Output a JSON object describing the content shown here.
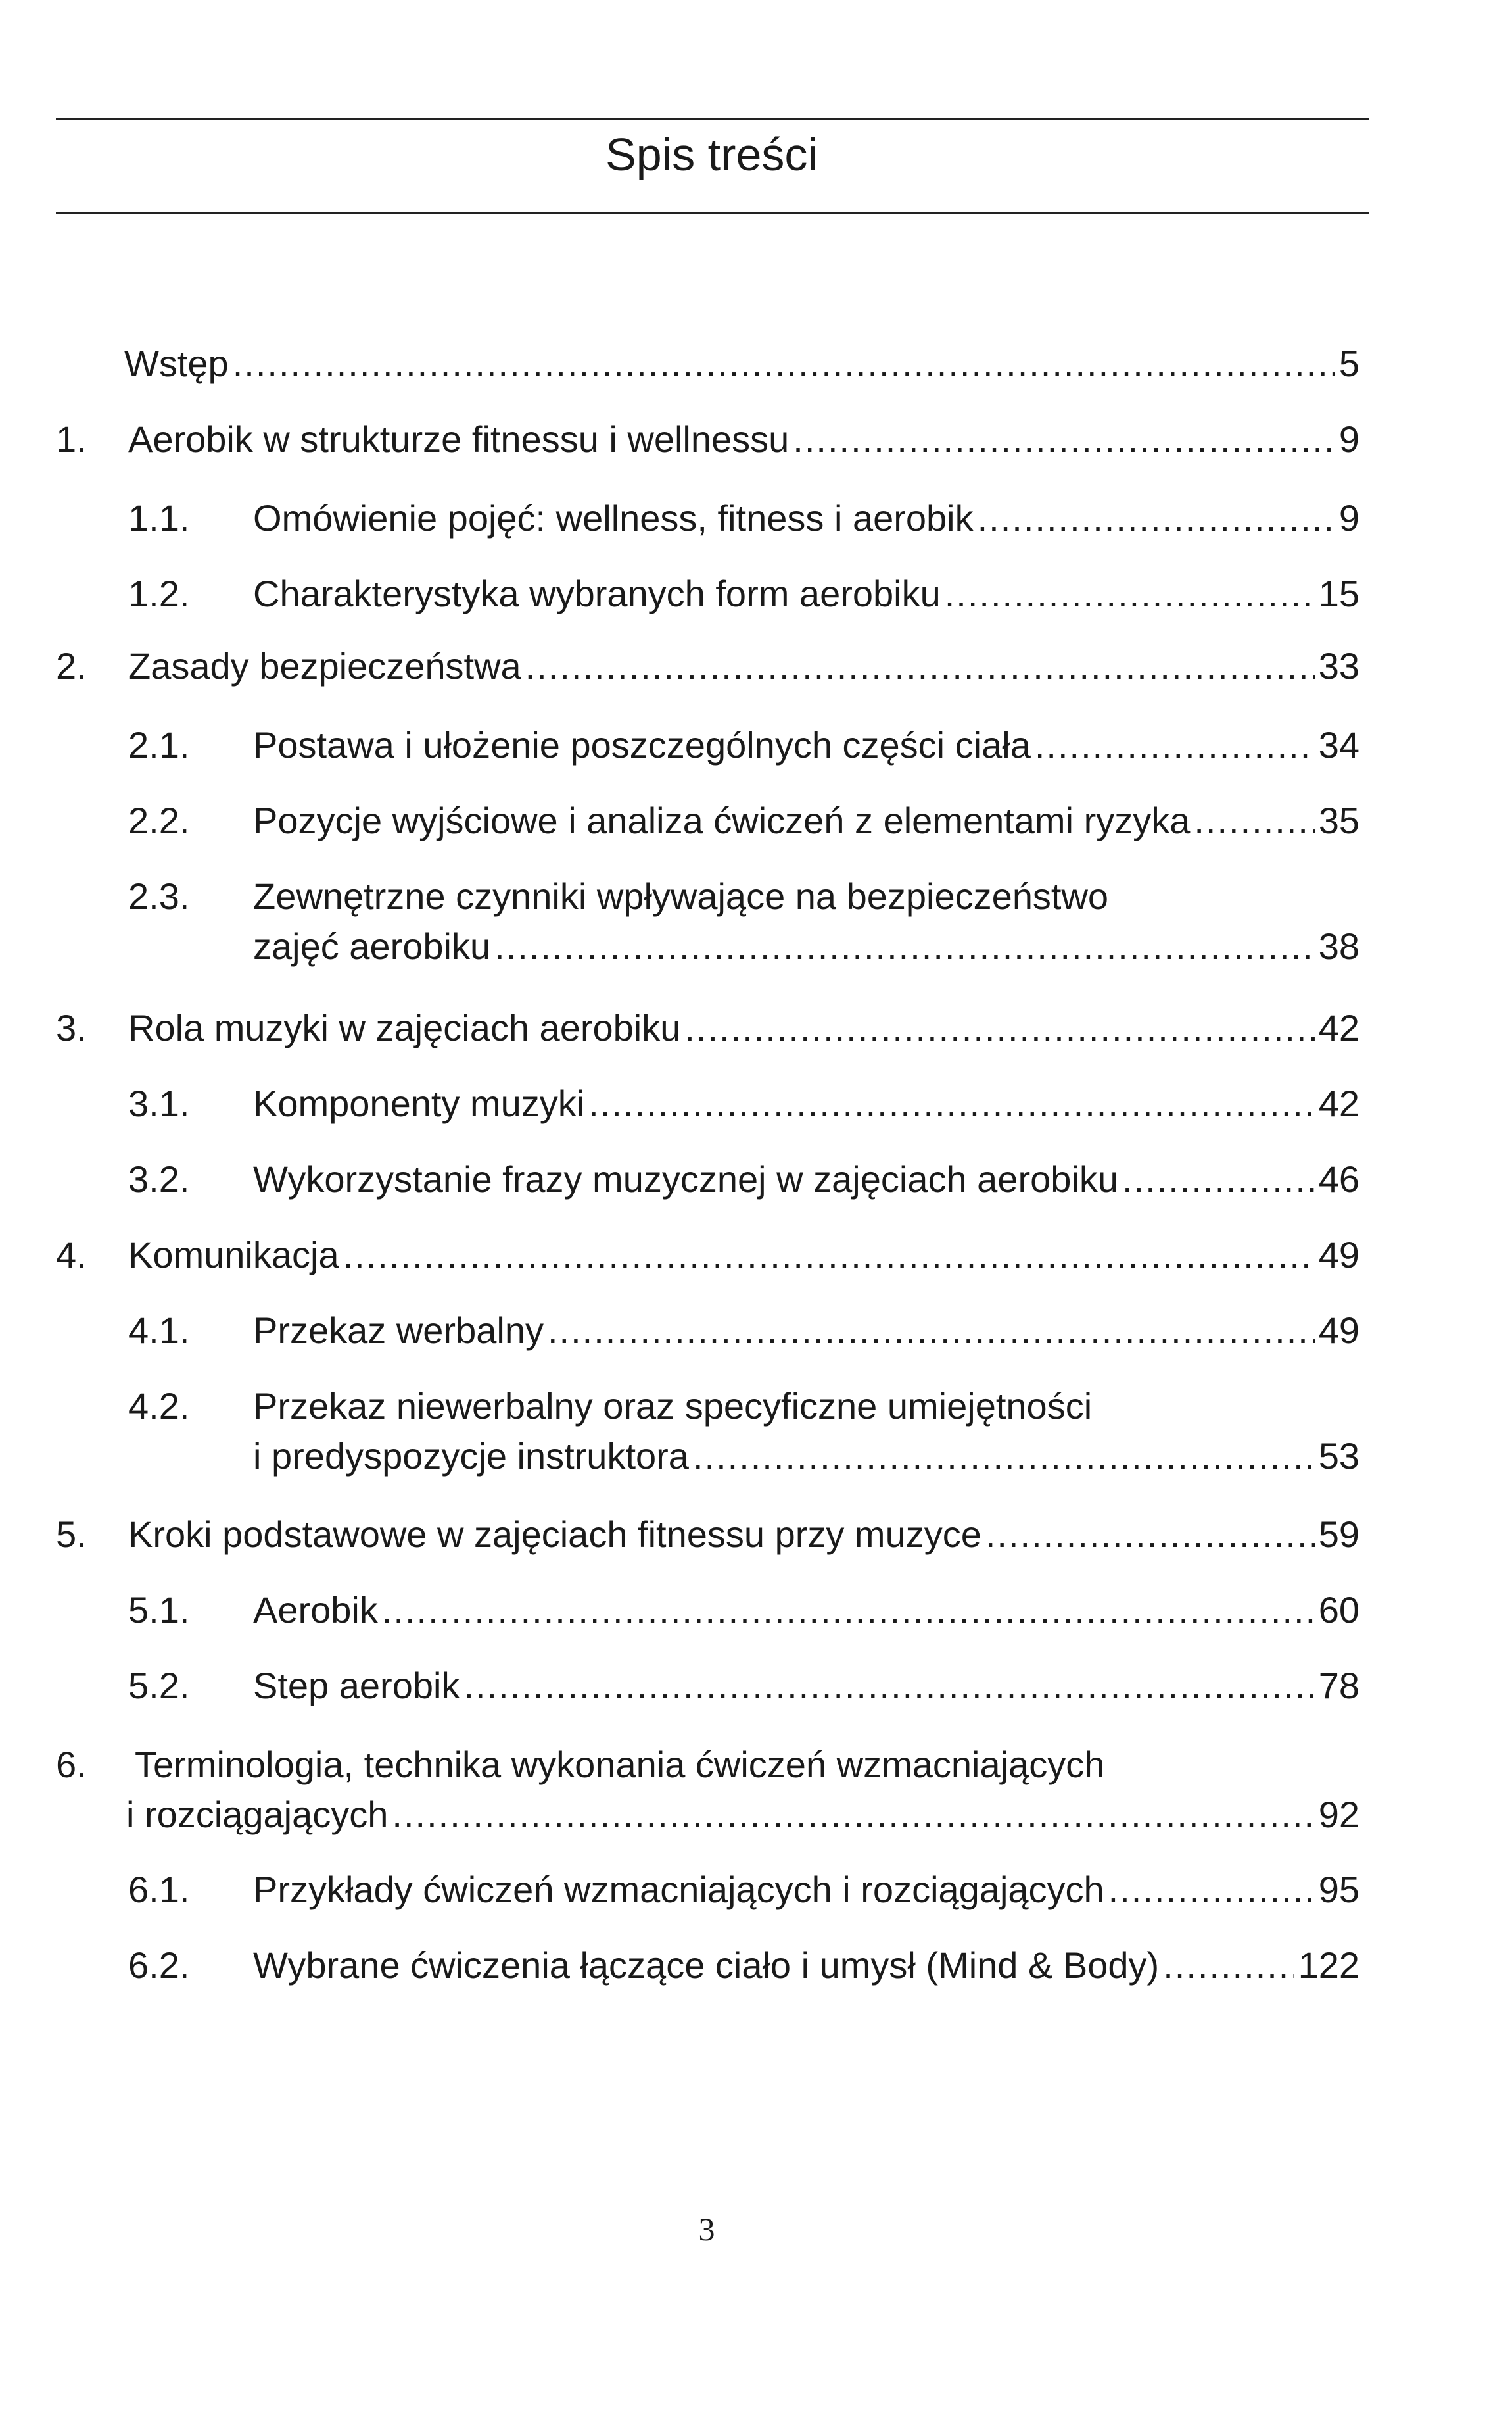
{
  "title": "Spis treści",
  "entries": [
    {
      "level": 0,
      "num": "",
      "lines": [
        "Wstęp"
      ],
      "page": "5"
    },
    {
      "level": 1,
      "num": "1.",
      "lines": [
        "Aerobik w strukturze fitnessu i wellnessu"
      ],
      "page": "9"
    },
    {
      "level": 2,
      "num": "1.1.",
      "lines": [
        "Omówienie pojęć: wellness, fitness i aerobik"
      ],
      "page": "9"
    },
    {
      "level": 2,
      "num": "1.2.",
      "lines": [
        "Charakterystyka wybranych form aerobiku"
      ],
      "page": "15"
    },
    {
      "level": 1,
      "num": "2.",
      "lines": [
        "Zasady bezpieczeństwa"
      ],
      "page": "33"
    },
    {
      "level": 2,
      "num": "2.1.",
      "lines": [
        "Postawa i ułożenie poszczególnych części ciała"
      ],
      "page": "34"
    },
    {
      "level": 2,
      "num": "2.2.",
      "lines": [
        "Pozycje wyjściowe i analiza ćwiczeń z elementami ryzyka"
      ],
      "page": "35"
    },
    {
      "level": 2,
      "num": "2.3.",
      "lines": [
        "Zewnętrzne czynniki wpływające na bezpieczeństwo",
        "zajęć aerobiku"
      ],
      "page": "38"
    },
    {
      "level": 1,
      "num": "3.",
      "lines": [
        "Rola muzyki w zajęciach aerobiku"
      ],
      "page": "42"
    },
    {
      "level": 2,
      "num": "3.1.",
      "lines": [
        "Komponenty muzyki"
      ],
      "page": "42"
    },
    {
      "level": 2,
      "num": "3.2.",
      "lines": [
        "Wykorzystanie frazy muzycznej w zajęciach aerobiku"
      ],
      "page": "46"
    },
    {
      "level": 1,
      "num": "4.",
      "lines": [
        "Komunikacja"
      ],
      "page": "49"
    },
    {
      "level": 2,
      "num": "4.1.",
      "lines": [
        "Przekaz werbalny"
      ],
      "page": "49"
    },
    {
      "level": 2,
      "num": "4.2.",
      "lines": [
        "Przekaz niewerbalny oraz specyficzne umiejętności",
        "i predyspozycje instruktora"
      ],
      "page": "53"
    },
    {
      "level": 1,
      "num": "5.",
      "lines": [
        "Kroki podstawowe w zajęciach fitnessu przy muzyce"
      ],
      "page": "59"
    },
    {
      "level": 2,
      "num": "5.1.",
      "lines": [
        "Aerobik"
      ],
      "page": "60"
    },
    {
      "level": 2,
      "num": "5.2.",
      "lines": [
        "Step aerobik"
      ],
      "page": "78"
    },
    {
      "level": 1,
      "num": "6.",
      "lines": [
        "Terminologia, technika wykonania ćwiczeń wzmacniających",
        "i rozciągających"
      ],
      "page": "92"
    },
    {
      "level": 2,
      "num": "6.1.",
      "lines": [
        "Przykłady ćwiczeń wzmacniających i rozciągających"
      ],
      "page": "95"
    },
    {
      "level": 2,
      "num": "6.2.",
      "lines": [
        "Wybrane ćwiczenia łączące ciało i umysł (Mind & Body)"
      ],
      "page": "122"
    }
  ],
  "page_number": "3"
}
